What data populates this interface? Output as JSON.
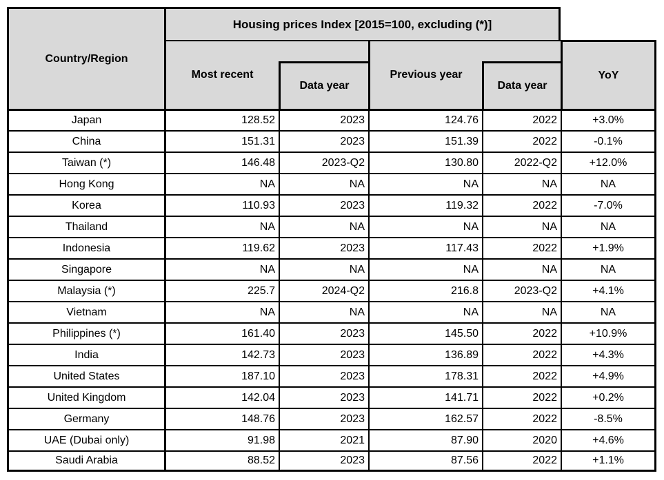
{
  "table": {
    "corner_header": "Country/Region",
    "group_header": "Housing prices Index [2015=100, excluding (*)]",
    "col_headers": {
      "most_recent": "Most recent",
      "data_year_1": "Data year",
      "previous_year": "Previous year",
      "data_year_2": "Data year",
      "yoy": "YoY"
    },
    "rows": [
      {
        "country": "Japan",
        "most_recent": "128.52",
        "data_year_1": "2023",
        "previous_year": "124.76",
        "data_year_2": "2022",
        "yoy": "+3.0%"
      },
      {
        "country": "China",
        "most_recent": "151.31",
        "data_year_1": "2023",
        "previous_year": "151.39",
        "data_year_2": "2022",
        "yoy": "-0.1%"
      },
      {
        "country": "Taiwan (*)",
        "most_recent": "146.48",
        "data_year_1": "2023-Q2",
        "previous_year": "130.80",
        "data_year_2": "2022-Q2",
        "yoy": "+12.0%"
      },
      {
        "country": "Hong Kong",
        "most_recent": "NA",
        "data_year_1": "NA",
        "previous_year": "NA",
        "data_year_2": "NA",
        "yoy": "NA"
      },
      {
        "country": "Korea",
        "most_recent": "110.93",
        "data_year_1": "2023",
        "previous_year": "119.32",
        "data_year_2": "2022",
        "yoy": "-7.0%"
      },
      {
        "country": "Thailand",
        "most_recent": "NA",
        "data_year_1": "NA",
        "previous_year": "NA",
        "data_year_2": "NA",
        "yoy": "NA"
      },
      {
        "country": "Indonesia",
        "most_recent": "119.62",
        "data_year_1": "2023",
        "previous_year": "117.43",
        "data_year_2": "2022",
        "yoy": "+1.9%"
      },
      {
        "country": "Singapore",
        "most_recent": "NA",
        "data_year_1": "NA",
        "previous_year": "NA",
        "data_year_2": "NA",
        "yoy": "NA"
      },
      {
        "country": "Malaysia (*)",
        "most_recent": "225.7",
        "data_year_1": "2024-Q2",
        "previous_year": "216.8",
        "data_year_2": "2023-Q2",
        "yoy": "+4.1%"
      },
      {
        "country": "Vietnam",
        "most_recent": "NA",
        "data_year_1": "NA",
        "previous_year": "NA",
        "data_year_2": "NA",
        "yoy": "NA"
      },
      {
        "country": "Philippines (*)",
        "most_recent": "161.40",
        "data_year_1": "2023",
        "previous_year": "145.50",
        "data_year_2": "2022",
        "yoy": "+10.9%"
      },
      {
        "country": "India",
        "most_recent": "142.73",
        "data_year_1": "2023",
        "previous_year": "136.89",
        "data_year_2": "2022",
        "yoy": "+4.3%"
      },
      {
        "country": "United States",
        "most_recent": "187.10",
        "data_year_1": "2023",
        "previous_year": "178.31",
        "data_year_2": "2022",
        "yoy": "+4.9%"
      },
      {
        "country": "United Kingdom",
        "most_recent": "142.04",
        "data_year_1": "2023",
        "previous_year": "141.71",
        "data_year_2": "2022",
        "yoy": "+0.2%"
      },
      {
        "country": "Germany",
        "most_recent": "148.76",
        "data_year_1": "2023",
        "previous_year": "162.57",
        "data_year_2": "2022",
        "yoy": "-8.5%"
      },
      {
        "country": "UAE (Dubai only)",
        "most_recent": "91.98",
        "data_year_1": "2021",
        "previous_year": "87.90",
        "data_year_2": "2020",
        "yoy": "+4.6%"
      },
      {
        "country": "Saudi Arabia",
        "most_recent": "88.52",
        "data_year_1": "2023",
        "previous_year": "87.56",
        "data_year_2": "2022",
        "yoy": "+1.1%"
      }
    ]
  },
  "colors": {
    "header_bg": "#d9d9d9",
    "row_bg": "#ffffff",
    "border": "#000000",
    "text": "#000000"
  }
}
